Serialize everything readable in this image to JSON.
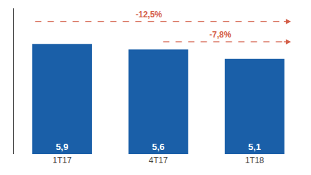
{
  "chart_data": {
    "type": "bar",
    "categories": [
      "1T17",
      "4T17",
      "1T18"
    ],
    "values": [
      5.9,
      5.6,
      5.1
    ],
    "value_labels": [
      "5,9",
      "5,6",
      "5,1"
    ],
    "data_labels": true,
    "color": "#1a5fa8",
    "ylim": [
      0,
      7.8
    ],
    "grid": false,
    "tick_labels": "x",
    "annotations": [
      "-12,5%",
      "-7,8%"
    ]
  }
}
